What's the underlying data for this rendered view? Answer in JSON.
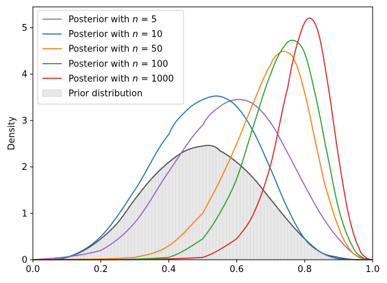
{
  "chart_data": {
    "type": "line",
    "title": "",
    "xlabel": "",
    "ylabel": "Density",
    "xlim": [
      0.0,
      1.0
    ],
    "ylim": [
      0,
      5.45
    ],
    "xticks": [
      "0.0",
      "0.2",
      "0.4",
      "0.6",
      "0.8",
      "1.0"
    ],
    "yticks": [
      "0",
      "1",
      "2",
      "3",
      "4",
      "5"
    ],
    "grid": false,
    "legend_position": "top-left",
    "series": [
      {
        "name": "Posterior with n = 5",
        "label_prefix": "Posterior with ",
        "label_var": "n",
        "label_value": "5",
        "color": "#9467bd",
        "x": [
          0.0,
          0.2,
          0.3,
          0.4,
          0.5,
          0.55,
          0.6,
          0.65,
          0.7,
          0.75,
          0.8,
          0.85,
          0.9,
          0.95,
          1.0
        ],
        "values": [
          0.0,
          0.2,
          0.8,
          1.9,
          2.9,
          3.3,
          3.45,
          3.35,
          2.95,
          2.3,
          1.6,
          0.95,
          0.45,
          0.1,
          0.0
        ]
      },
      {
        "name": "Posterior with n = 10",
        "label_prefix": "Posterior with ",
        "label_var": "n",
        "label_value": "10",
        "color": "#1f77b4",
        "x": [
          0.0,
          0.1,
          0.2,
          0.3,
          0.4,
          0.45,
          0.5,
          0.55,
          0.6,
          0.65,
          0.7,
          0.75,
          0.8,
          0.85,
          0.9,
          1.0
        ],
        "values": [
          0.0,
          0.05,
          0.5,
          1.5,
          2.7,
          3.2,
          3.45,
          3.52,
          3.3,
          2.75,
          1.95,
          1.1,
          0.45,
          0.15,
          0.02,
          0.0
        ]
      },
      {
        "name": "Posterior with n = 50",
        "label_prefix": "Posterior with ",
        "label_var": "n",
        "label_value": "50",
        "color": "#ff7f0e",
        "x": [
          0.0,
          0.3,
          0.4,
          0.5,
          0.55,
          0.6,
          0.65,
          0.7,
          0.725,
          0.745,
          0.77,
          0.8,
          0.83,
          0.86,
          0.9,
          0.93,
          0.96,
          1.0
        ],
        "values": [
          0.0,
          0.05,
          0.3,
          1.0,
          1.7,
          2.5,
          3.4,
          4.2,
          4.45,
          4.48,
          4.3,
          3.6,
          2.6,
          1.6,
          0.7,
          0.25,
          0.05,
          0.0
        ]
      },
      {
        "name": "Posterior with n = 100",
        "label_prefix": "Posterior with ",
        "label_var": "n",
        "label_value": "100",
        "color": "#2ca02c",
        "x": [
          0.0,
          0.4,
          0.5,
          0.55,
          0.6,
          0.65,
          0.7,
          0.74,
          0.77,
          0.8,
          0.83,
          0.86,
          0.9,
          0.94,
          0.97,
          1.0
        ],
        "values": [
          0.0,
          0.05,
          0.45,
          1.0,
          1.75,
          2.9,
          4.0,
          4.6,
          4.72,
          4.45,
          3.6,
          2.5,
          1.1,
          0.3,
          0.05,
          0.0
        ]
      },
      {
        "name": "Posterior with n = 1000",
        "label_prefix": "Posterior with ",
        "label_var": "n",
        "label_value": "1000",
        "color": "#d62728",
        "x": [
          0.0,
          0.5,
          0.6,
          0.65,
          0.7,
          0.75,
          0.78,
          0.81,
          0.84,
          0.87,
          0.9,
          0.93,
          0.96,
          0.98,
          1.0
        ],
        "values": [
          0.0,
          0.05,
          0.45,
          1.0,
          2.05,
          3.7,
          4.7,
          5.2,
          4.9,
          3.7,
          2.2,
          0.95,
          0.25,
          0.05,
          0.0
        ]
      }
    ],
    "prior": {
      "name": "Prior distribution",
      "hist_color": "#e8e8e8",
      "kde_color": "#4d4d4d",
      "x": [
        0.0,
        0.05,
        0.1,
        0.15,
        0.2,
        0.25,
        0.3,
        0.35,
        0.4,
        0.45,
        0.5,
        0.53,
        0.55,
        0.6,
        0.65,
        0.7,
        0.75,
        0.8,
        0.85,
        0.9,
        0.95,
        1.0
      ],
      "values": [
        0.0,
        0.0,
        0.05,
        0.2,
        0.45,
        0.8,
        1.3,
        1.75,
        2.1,
        2.35,
        2.45,
        2.45,
        2.35,
        2.1,
        1.75,
        1.3,
        0.85,
        0.45,
        0.15,
        0.05,
        0.0,
        0.0
      ]
    }
  }
}
